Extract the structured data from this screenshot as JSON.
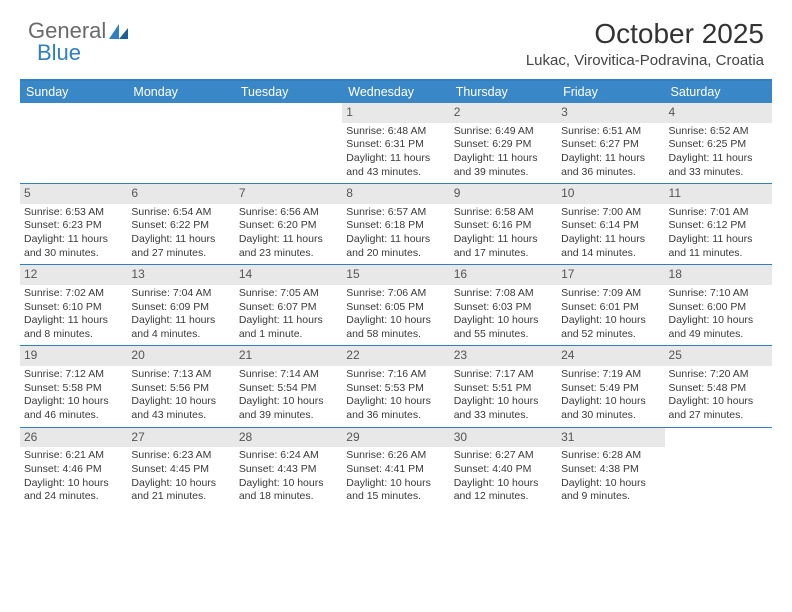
{
  "logo": {
    "text1": "General",
    "text2": "Blue"
  },
  "title": "October 2025",
  "location": "Lukac, Virovitica-Podravina, Croatia",
  "colors": {
    "header_bar": "#3a87c8",
    "border": "#2f7fc1",
    "daynum_bg": "#e8e8e8",
    "logo_gray": "#6a6a6a",
    "logo_blue": "#2f7fc1"
  },
  "weekdays": [
    "Sunday",
    "Monday",
    "Tuesday",
    "Wednesday",
    "Thursday",
    "Friday",
    "Saturday"
  ],
  "weeks": [
    [
      {
        "n": "",
        "empty": true
      },
      {
        "n": "",
        "empty": true
      },
      {
        "n": "",
        "empty": true
      },
      {
        "n": "1",
        "sr": "6:48 AM",
        "ss": "6:31 PM",
        "dl": "11 hours and 43 minutes."
      },
      {
        "n": "2",
        "sr": "6:49 AM",
        "ss": "6:29 PM",
        "dl": "11 hours and 39 minutes."
      },
      {
        "n": "3",
        "sr": "6:51 AM",
        "ss": "6:27 PM",
        "dl": "11 hours and 36 minutes."
      },
      {
        "n": "4",
        "sr": "6:52 AM",
        "ss": "6:25 PM",
        "dl": "11 hours and 33 minutes."
      }
    ],
    [
      {
        "n": "5",
        "sr": "6:53 AM",
        "ss": "6:23 PM",
        "dl": "11 hours and 30 minutes."
      },
      {
        "n": "6",
        "sr": "6:54 AM",
        "ss": "6:22 PM",
        "dl": "11 hours and 27 minutes."
      },
      {
        "n": "7",
        "sr": "6:56 AM",
        "ss": "6:20 PM",
        "dl": "11 hours and 23 minutes."
      },
      {
        "n": "8",
        "sr": "6:57 AM",
        "ss": "6:18 PM",
        "dl": "11 hours and 20 minutes."
      },
      {
        "n": "9",
        "sr": "6:58 AM",
        "ss": "6:16 PM",
        "dl": "11 hours and 17 minutes."
      },
      {
        "n": "10",
        "sr": "7:00 AM",
        "ss": "6:14 PM",
        "dl": "11 hours and 14 minutes."
      },
      {
        "n": "11",
        "sr": "7:01 AM",
        "ss": "6:12 PM",
        "dl": "11 hours and 11 minutes."
      }
    ],
    [
      {
        "n": "12",
        "sr": "7:02 AM",
        "ss": "6:10 PM",
        "dl": "11 hours and 8 minutes."
      },
      {
        "n": "13",
        "sr": "7:04 AM",
        "ss": "6:09 PM",
        "dl": "11 hours and 4 minutes."
      },
      {
        "n": "14",
        "sr": "7:05 AM",
        "ss": "6:07 PM",
        "dl": "11 hours and 1 minute."
      },
      {
        "n": "15",
        "sr": "7:06 AM",
        "ss": "6:05 PM",
        "dl": "10 hours and 58 minutes."
      },
      {
        "n": "16",
        "sr": "7:08 AM",
        "ss": "6:03 PM",
        "dl": "10 hours and 55 minutes."
      },
      {
        "n": "17",
        "sr": "7:09 AM",
        "ss": "6:01 PM",
        "dl": "10 hours and 52 minutes."
      },
      {
        "n": "18",
        "sr": "7:10 AM",
        "ss": "6:00 PM",
        "dl": "10 hours and 49 minutes."
      }
    ],
    [
      {
        "n": "19",
        "sr": "7:12 AM",
        "ss": "5:58 PM",
        "dl": "10 hours and 46 minutes."
      },
      {
        "n": "20",
        "sr": "7:13 AM",
        "ss": "5:56 PM",
        "dl": "10 hours and 43 minutes."
      },
      {
        "n": "21",
        "sr": "7:14 AM",
        "ss": "5:54 PM",
        "dl": "10 hours and 39 minutes."
      },
      {
        "n": "22",
        "sr": "7:16 AM",
        "ss": "5:53 PM",
        "dl": "10 hours and 36 minutes."
      },
      {
        "n": "23",
        "sr": "7:17 AM",
        "ss": "5:51 PM",
        "dl": "10 hours and 33 minutes."
      },
      {
        "n": "24",
        "sr": "7:19 AM",
        "ss": "5:49 PM",
        "dl": "10 hours and 30 minutes."
      },
      {
        "n": "25",
        "sr": "7:20 AM",
        "ss": "5:48 PM",
        "dl": "10 hours and 27 minutes."
      }
    ],
    [
      {
        "n": "26",
        "sr": "6:21 AM",
        "ss": "4:46 PM",
        "dl": "10 hours and 24 minutes."
      },
      {
        "n": "27",
        "sr": "6:23 AM",
        "ss": "4:45 PM",
        "dl": "10 hours and 21 minutes."
      },
      {
        "n": "28",
        "sr": "6:24 AM",
        "ss": "4:43 PM",
        "dl": "10 hours and 18 minutes."
      },
      {
        "n": "29",
        "sr": "6:26 AM",
        "ss": "4:41 PM",
        "dl": "10 hours and 15 minutes."
      },
      {
        "n": "30",
        "sr": "6:27 AM",
        "ss": "4:40 PM",
        "dl": "10 hours and 12 minutes."
      },
      {
        "n": "31",
        "sr": "6:28 AM",
        "ss": "4:38 PM",
        "dl": "10 hours and 9 minutes."
      },
      {
        "n": "",
        "empty": true
      }
    ]
  ],
  "labels": {
    "sunrise": "Sunrise:",
    "sunset": "Sunset:",
    "daylight": "Daylight:"
  }
}
